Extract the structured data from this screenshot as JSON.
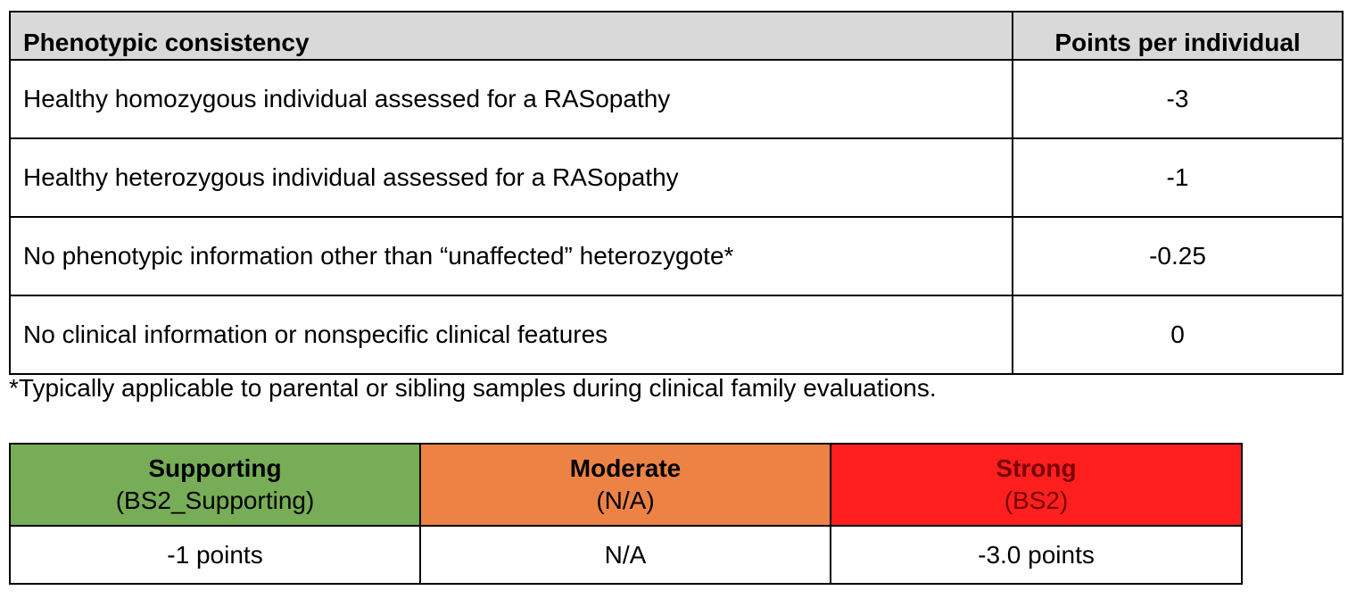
{
  "phenotype_table": {
    "header": {
      "col1": "Phenotypic consistency",
      "col2": "Points per individual"
    },
    "rows": [
      {
        "label": "Healthy homozygous individual assessed for a RASopathy",
        "points": "-3"
      },
      {
        "label": "Healthy heterozygous individual assessed for a RASopathy",
        "points": "-1"
      },
      {
        "label": "No phenotypic information other than “unaffected” heterozygote*",
        "points": "-0.25"
      },
      {
        "label": "No clinical information or nonspecific clinical features",
        "points": "0"
      }
    ],
    "footnote": "*Typically applicable to parental or sibling samples during clinical family evaluations."
  },
  "strength_table": {
    "levels": [
      {
        "name": "Supporting",
        "code": "(BS2_Supporting)",
        "points": "-1 points",
        "bg_color": "#77ad57",
        "text_color": "#000000"
      },
      {
        "name": "Moderate",
        "code": "(N/A)",
        "points": "N/A",
        "bg_color": "#ec8345",
        "text_color": "#000000"
      },
      {
        "name": "Strong",
        "code": "(BS2)",
        "points": "-3.0 points",
        "bg_color": "#ff1f1f",
        "text_color": "#7a0000"
      }
    ]
  }
}
